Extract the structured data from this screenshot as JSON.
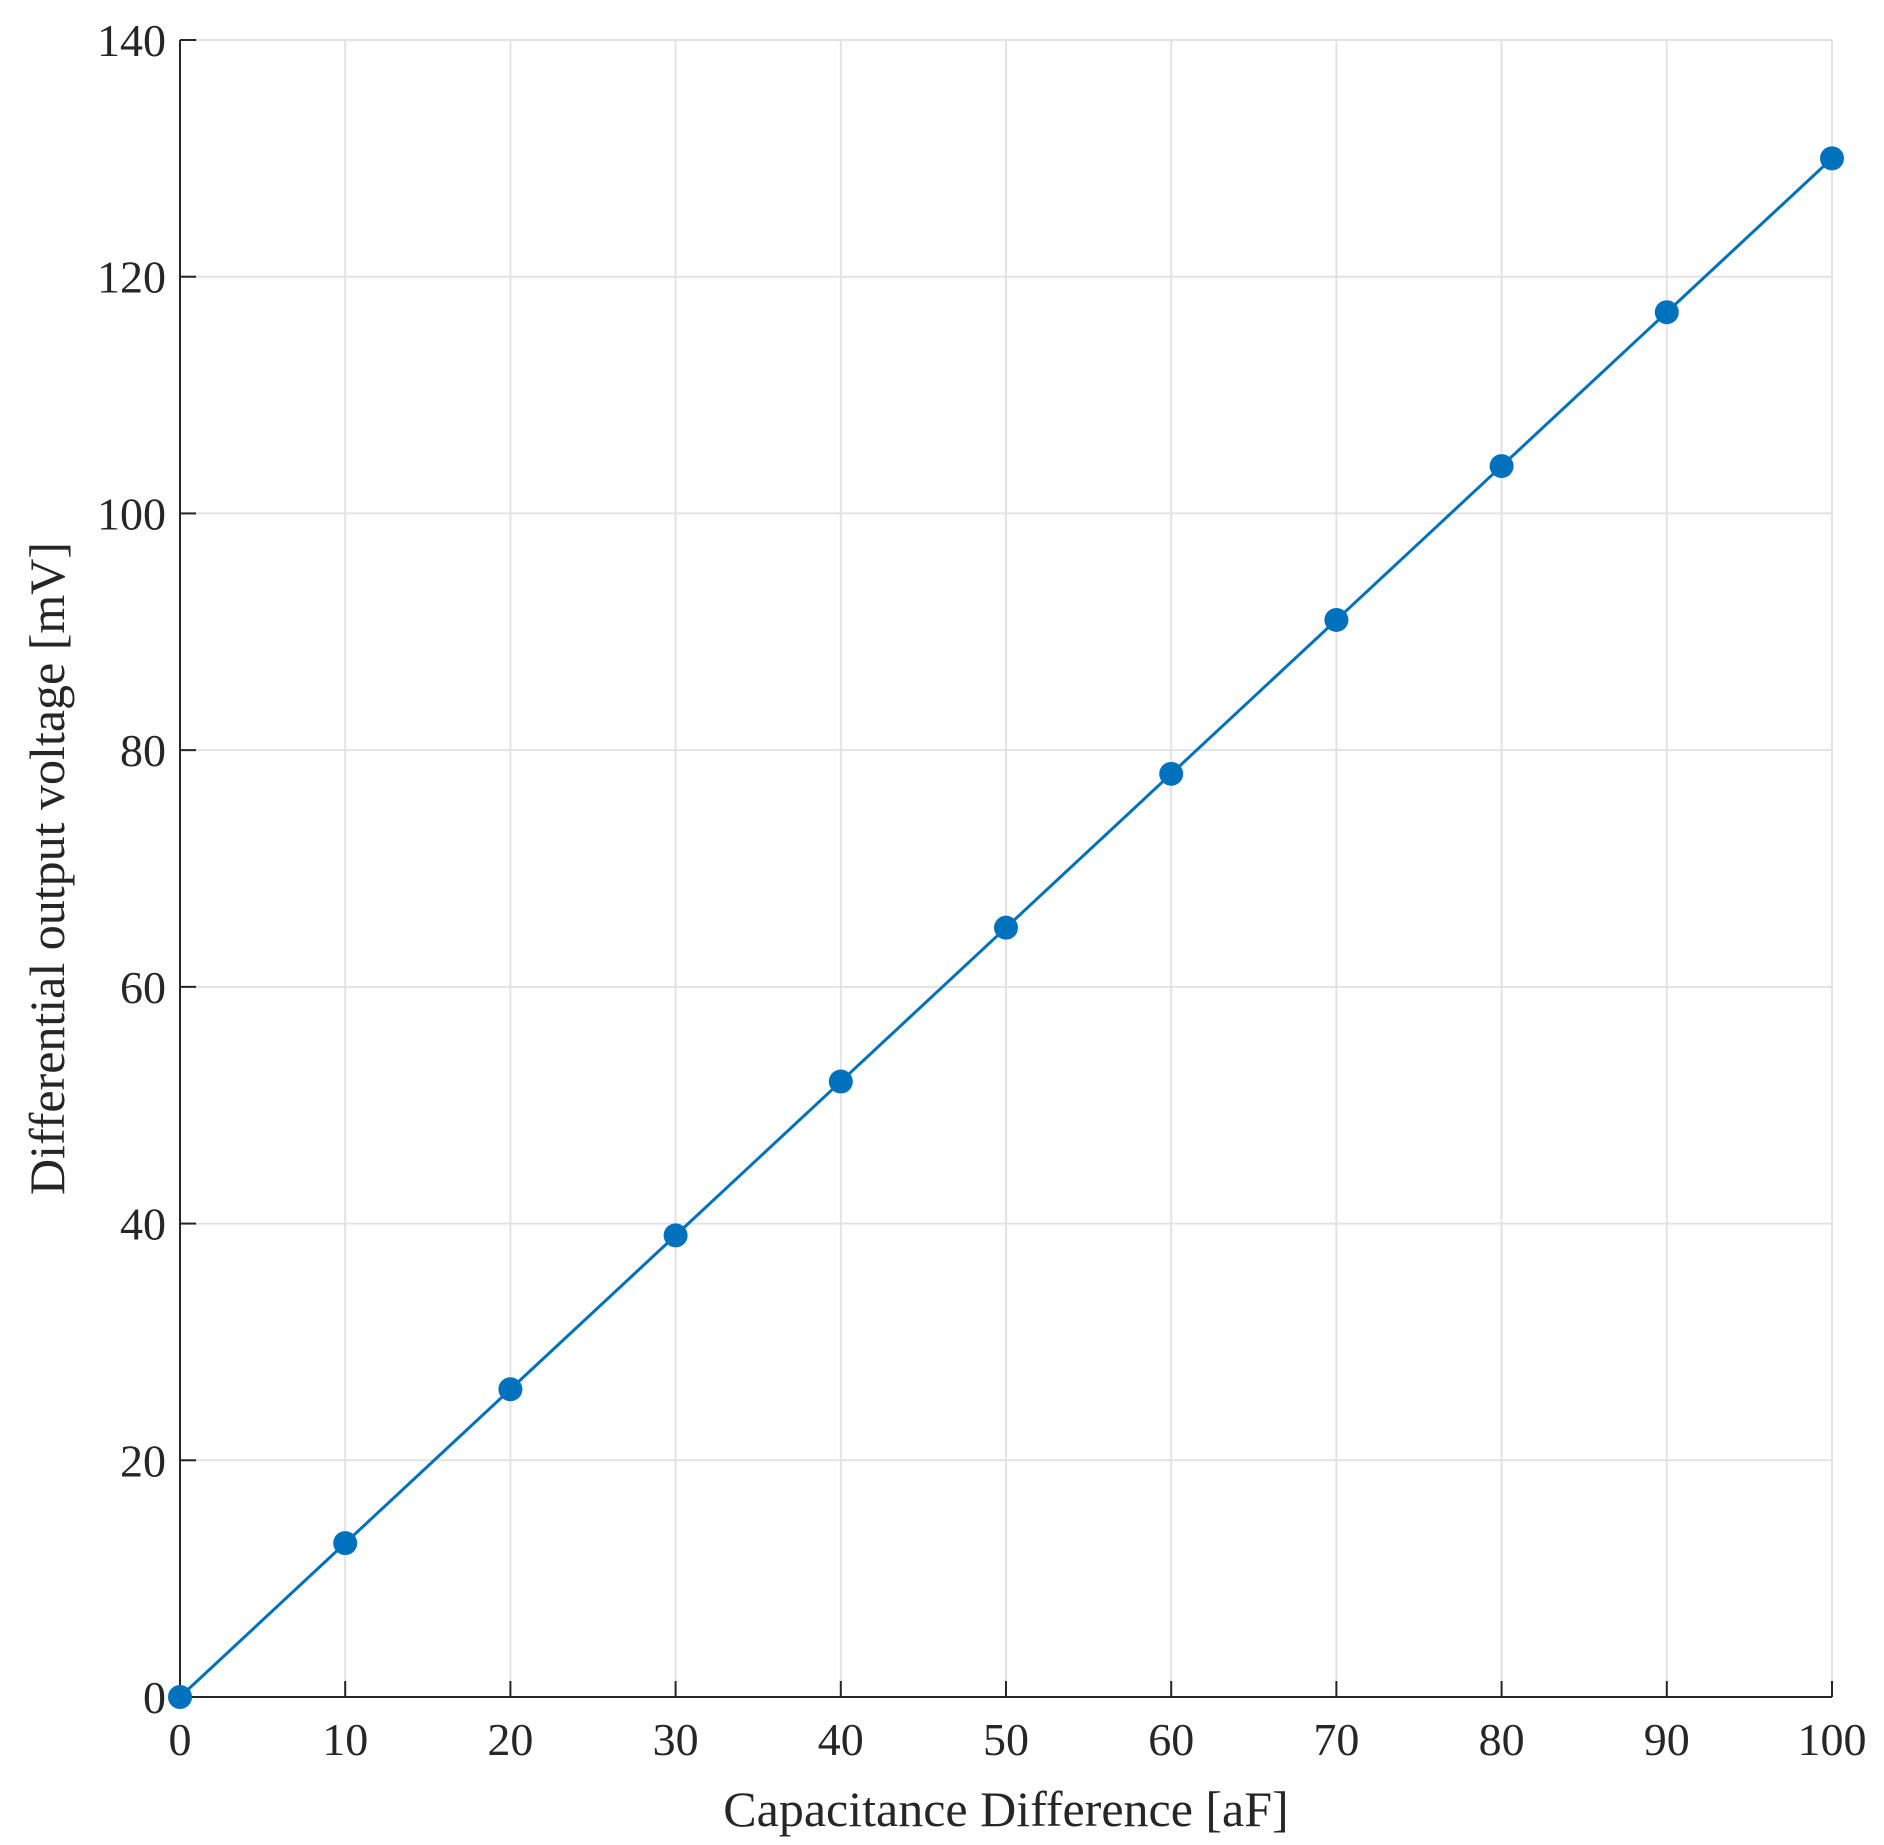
{
  "chart_data": {
    "type": "line",
    "title": "",
    "xlabel": "Capacitance Difference [aF]",
    "ylabel": "Differential output voltage [mV]",
    "xlim": [
      0,
      100
    ],
    "ylim": [
      0,
      140
    ],
    "xticks": [
      0,
      10,
      20,
      30,
      40,
      50,
      60,
      70,
      80,
      90,
      100
    ],
    "yticks": [
      0,
      20,
      40,
      60,
      80,
      100,
      120,
      140
    ],
    "grid": true,
    "series": [
      {
        "color": "#0072BD",
        "marker": "circle",
        "x": [
          0,
          10,
          20,
          30,
          40,
          50,
          60,
          70,
          80,
          90,
          100
        ],
        "y": [
          0,
          13,
          26,
          39,
          52,
          65,
          78,
          91,
          104,
          117,
          130
        ]
      }
    ]
  }
}
